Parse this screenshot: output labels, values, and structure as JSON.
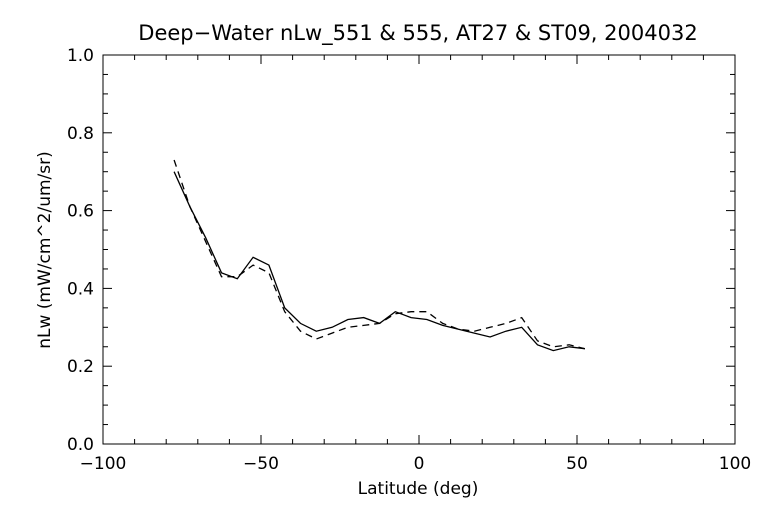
{
  "chart_data": {
    "type": "line",
    "title": "Deep−Water nLw_551 & 555, AT27 & ST09, 2004032",
    "xlabel": "Latitude (deg)",
    "ylabel": "nLw (mW/cm^2/um/sr)",
    "xlim": [
      -100,
      100
    ],
    "ylim": [
      0.0,
      1.0
    ],
    "x_ticks": [
      -100,
      -50,
      0,
      50,
      100
    ],
    "x_tick_labels": [
      "−100",
      "−50",
      "0",
      "50",
      "100"
    ],
    "y_ticks": [
      0.0,
      0.2,
      0.4,
      0.6,
      0.8,
      1.0
    ],
    "y_tick_labels": [
      "0.0",
      "0.2",
      "0.4",
      "0.6",
      "0.8",
      "1.0"
    ],
    "grid": false,
    "series": [
      {
        "style": "solid",
        "color": "#000000",
        "x": [
          -77.5,
          -72.5,
          -67.5,
          -62.5,
          -57.5,
          -52.5,
          -47.5,
          -42.5,
          -37.5,
          -32.5,
          -27.5,
          -22.5,
          -17.5,
          -12.5,
          -7.5,
          -2.5,
          2.5,
          7.5,
          12.5,
          17.5,
          22.5,
          27.5,
          32.5,
          37.5,
          42.5,
          47.5,
          52.5
        ],
        "values": [
          0.7,
          0.61,
          0.53,
          0.44,
          0.425,
          0.48,
          0.46,
          0.35,
          0.31,
          0.29,
          0.3,
          0.32,
          0.325,
          0.31,
          0.34,
          0.325,
          0.32,
          0.305,
          0.295,
          0.285,
          0.275,
          0.29,
          0.3,
          0.255,
          0.24,
          0.25,
          0.245
        ]
      },
      {
        "style": "dashed",
        "color": "#000000",
        "x": [
          -77.5,
          -72.5,
          -67.5,
          -62.5,
          -57.5,
          -52.5,
          -47.5,
          -42.5,
          -37.5,
          -32.5,
          -27.5,
          -22.5,
          -17.5,
          -12.5,
          -7.5,
          -2.5,
          2.5,
          7.5,
          12.5,
          17.5,
          22.5,
          27.5,
          32.5,
          37.5,
          42.5,
          47.5,
          52.5
        ],
        "values": [
          0.73,
          0.61,
          0.52,
          0.43,
          0.43,
          0.46,
          0.44,
          0.34,
          0.29,
          0.27,
          0.285,
          0.3,
          0.305,
          0.31,
          0.335,
          0.34,
          0.34,
          0.31,
          0.295,
          0.29,
          0.3,
          0.31,
          0.325,
          0.265,
          0.25,
          0.255,
          0.245
        ]
      }
    ]
  }
}
